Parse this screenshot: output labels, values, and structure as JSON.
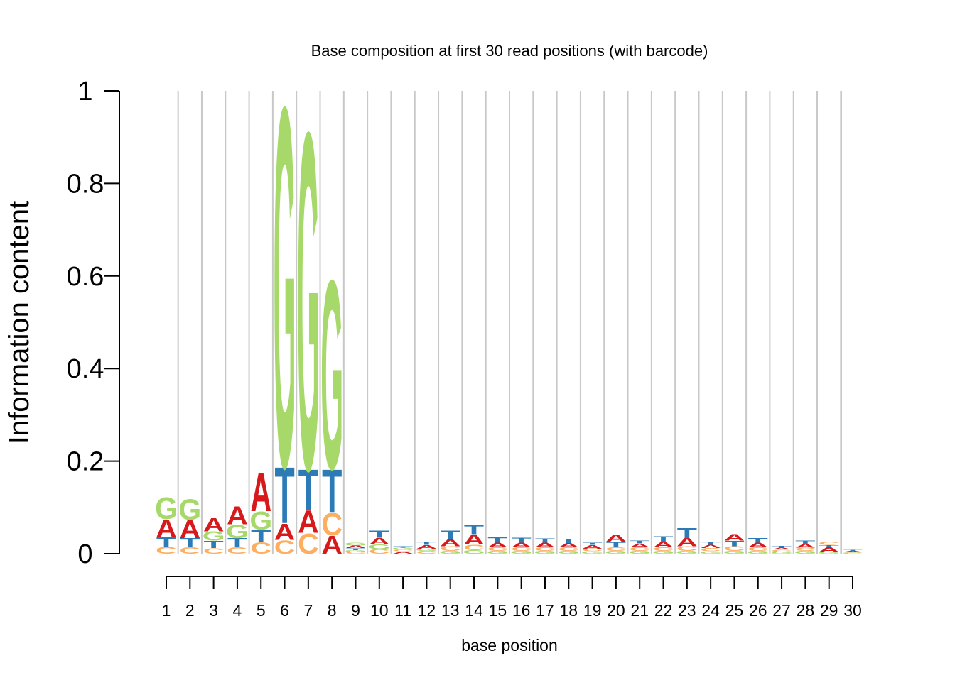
{
  "chart_data": {
    "type": "sequence-logo",
    "title": "Base composition at first 30 read positions (with barcode)",
    "xlabel": "base position",
    "ylabel": "Information content",
    "ylim": [
      0,
      1
    ],
    "yticks": [
      "0",
      "0.2",
      "0.4",
      "0.6",
      "0.8",
      "1"
    ],
    "positions": [
      1,
      2,
      3,
      4,
      5,
      6,
      7,
      8,
      9,
      10,
      11,
      12,
      13,
      14,
      15,
      16,
      17,
      18,
      19,
      20,
      21,
      22,
      23,
      24,
      25,
      26,
      27,
      28,
      29,
      30
    ],
    "grid": true,
    "colors": {
      "A": "#d7191c",
      "C": "#fdae61",
      "G": "#a6d96a",
      "T": "#2c7bb6"
    },
    "stacks": [
      [
        [
          "C",
          0.015
        ],
        [
          "T",
          0.02
        ],
        [
          "A",
          0.04
        ],
        [
          "G",
          0.048
        ]
      ],
      [
        [
          "C",
          0.014
        ],
        [
          "T",
          0.02
        ],
        [
          "A",
          0.04
        ],
        [
          "G",
          0.046
        ]
      ],
      [
        [
          "C",
          0.012
        ],
        [
          "T",
          0.016
        ],
        [
          "G",
          0.02
        ],
        [
          "A",
          0.03
        ]
      ],
      [
        [
          "C",
          0.014
        ],
        [
          "T",
          0.02
        ],
        [
          "G",
          0.03
        ],
        [
          "A",
          0.04
        ]
      ],
      [
        [
          "C",
          0.026
        ],
        [
          "T",
          0.026
        ],
        [
          "G",
          0.04
        ],
        [
          "A",
          0.085
        ]
      ],
      [
        [
          "C",
          0.03
        ],
        [
          "A",
          0.036
        ],
        [
          "T",
          0.125
        ],
        [
          "G",
          0.8
        ]
      ],
      [
        [
          "C",
          0.045
        ],
        [
          "A",
          0.05
        ],
        [
          "T",
          0.09
        ],
        [
          "G",
          0.75
        ]
      ],
      [
        [
          "A",
          0.04
        ],
        [
          "C",
          0.05
        ],
        [
          "T",
          0.095
        ],
        [
          "G",
          0.42
        ]
      ],
      [
        [
          "C",
          0.004
        ],
        [
          "G",
          0.004
        ],
        [
          "T",
          0.004
        ],
        [
          "A",
          0.006
        ],
        [
          "G",
          0.006
        ]
      ],
      [
        [
          "C",
          0.01
        ],
        [
          "G",
          0.01
        ],
        [
          "A",
          0.015
        ],
        [
          "T",
          0.015
        ]
      ],
      [
        [
          "A",
          0.005
        ],
        [
          "C",
          0.004
        ],
        [
          "G",
          0.004
        ],
        [
          "T",
          0.003
        ]
      ],
      [
        [
          "C",
          0.006
        ],
        [
          "G",
          0.005
        ],
        [
          "A",
          0.008
        ],
        [
          "T",
          0.006
        ]
      ],
      [
        [
          "G",
          0.006
        ],
        [
          "C",
          0.01
        ],
        [
          "A",
          0.016
        ],
        [
          "T",
          0.018
        ]
      ],
      [
        [
          "G",
          0.008
        ],
        [
          "C",
          0.012
        ],
        [
          "A",
          0.022
        ],
        [
          "T",
          0.02
        ]
      ],
      [
        [
          "G",
          0.006
        ],
        [
          "C",
          0.008
        ],
        [
          "A",
          0.01
        ],
        [
          "T",
          0.012
        ]
      ],
      [
        [
          "G",
          0.006
        ],
        [
          "C",
          0.008
        ],
        [
          "A",
          0.01
        ],
        [
          "T",
          0.011
        ]
      ],
      [
        [
          "G",
          0.006
        ],
        [
          "C",
          0.008
        ],
        [
          "A",
          0.01
        ],
        [
          "T",
          0.009
        ]
      ],
      [
        [
          "G",
          0.006
        ],
        [
          "C",
          0.008
        ],
        [
          "A",
          0.009
        ],
        [
          "T",
          0.009
        ]
      ],
      [
        [
          "G",
          0.005
        ],
        [
          "C",
          0.006
        ],
        [
          "A",
          0.008
        ],
        [
          "T",
          0.005
        ]
      ],
      [
        [
          "G",
          0.006
        ],
        [
          "C",
          0.008
        ],
        [
          "T",
          0.012
        ],
        [
          "A",
          0.016
        ]
      ],
      [
        [
          "G",
          0.006
        ],
        [
          "C",
          0.008
        ],
        [
          "A",
          0.008
        ],
        [
          "T",
          0.006
        ]
      ],
      [
        [
          "G",
          0.006
        ],
        [
          "C",
          0.008
        ],
        [
          "A",
          0.012
        ],
        [
          "T",
          0.012
        ]
      ],
      [
        [
          "G",
          0.006
        ],
        [
          "C",
          0.01
        ],
        [
          "A",
          0.018
        ],
        [
          "T",
          0.022
        ]
      ],
      [
        [
          "G",
          0.005
        ],
        [
          "C",
          0.007
        ],
        [
          "A",
          0.007
        ],
        [
          "T",
          0.006
        ]
      ],
      [
        [
          "G",
          0.006
        ],
        [
          "C",
          0.01
        ],
        [
          "T",
          0.012
        ],
        [
          "A",
          0.014
        ]
      ],
      [
        [
          "G",
          0.006
        ],
        [
          "C",
          0.008
        ],
        [
          "A",
          0.01
        ],
        [
          "T",
          0.01
        ]
      ],
      [
        [
          "G",
          0.004
        ],
        [
          "C",
          0.005
        ],
        [
          "A",
          0.004
        ],
        [
          "T",
          0.004
        ]
      ],
      [
        [
          "G",
          0.006
        ],
        [
          "C",
          0.007
        ],
        [
          "A",
          0.008
        ],
        [
          "T",
          0.008
        ]
      ],
      [
        [
          "G",
          0.004
        ],
        [
          "A",
          0.01
        ],
        [
          "T",
          0.005
        ],
        [
          "C",
          0.006
        ]
      ],
      [
        [
          "C",
          0.002
        ],
        [
          "G",
          0.002
        ],
        [
          "A",
          0.002
        ],
        [
          "T",
          0.002
        ]
      ]
    ]
  }
}
